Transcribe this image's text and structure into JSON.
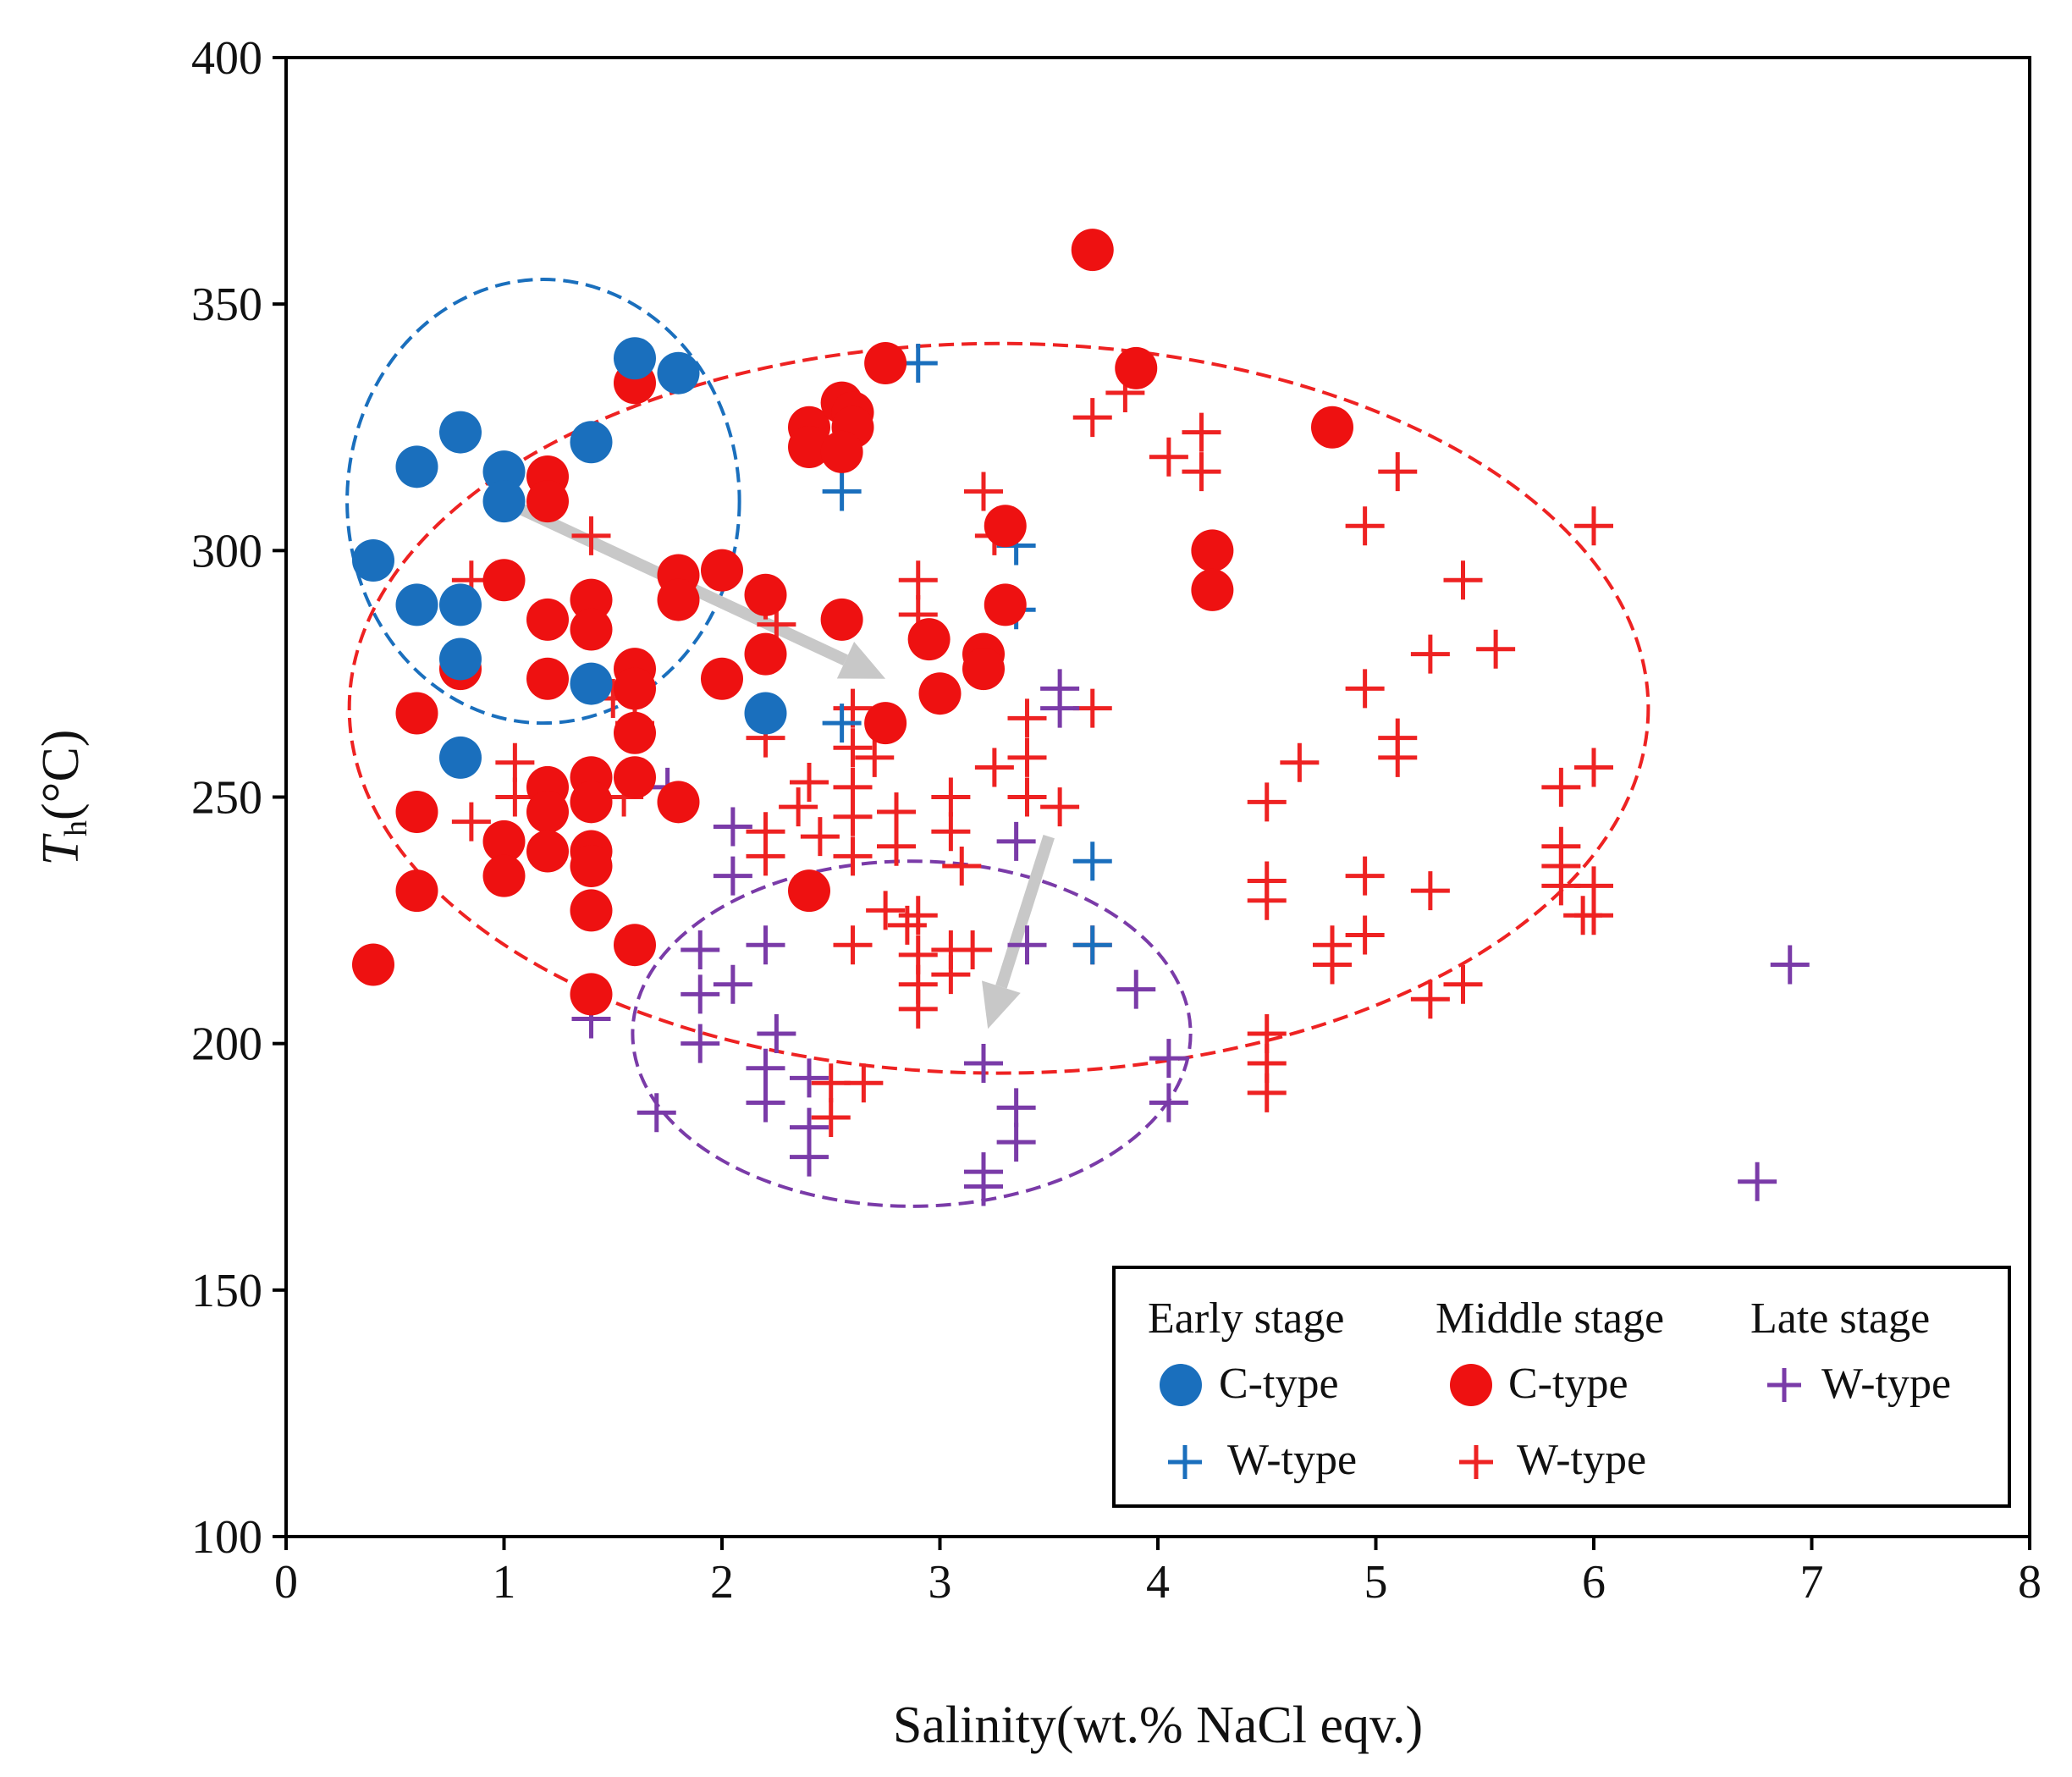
{
  "chart_data": {
    "type": "scatter",
    "title": "",
    "xlabel": "Salinity(wt.% NaCl eqv.)",
    "ylabel_main": "T",
    "ylabel_sub": "h",
    "ylabel_unit": "(°C)",
    "xlim": [
      0,
      8
    ],
    "ylim": [
      100,
      400
    ],
    "xticks": [
      "0",
      "1",
      "2",
      "3",
      "4",
      "5",
      "6",
      "7",
      "8"
    ],
    "yticks": [
      "100",
      "150",
      "200",
      "250",
      "300",
      "350",
      "400"
    ],
    "grid": false,
    "legend_position": "bottom-right",
    "legend": {
      "headers": [
        "Early stage",
        "Middle stage",
        "Late stage"
      ],
      "entries": [
        {
          "series": "early_c",
          "label": "C-type"
        },
        {
          "series": "early_w",
          "label": "W-type"
        },
        {
          "series": "middle_c",
          "label": "C-type"
        },
        {
          "series": "middle_w",
          "label": "W-type"
        },
        {
          "series": "late_w",
          "label": "W-type"
        }
      ]
    },
    "series": [
      {
        "id": "middle_w",
        "name": "Middle stage W-type",
        "marker": "plus",
        "color": "#ee2222",
        "points": [
          [
            0.85,
            294
          ],
          [
            0.85,
            245
          ],
          [
            1.05,
            257
          ],
          [
            1.05,
            250
          ],
          [
            1.4,
            303
          ],
          [
            1.5,
            270
          ],
          [
            1.55,
            250
          ],
          [
            1.6,
            276
          ],
          [
            1.6,
            265
          ],
          [
            2.2,
            290
          ],
          [
            2.25,
            285
          ],
          [
            2.2,
            262
          ],
          [
            2.2,
            243
          ],
          [
            2.2,
            238
          ],
          [
            2.35,
            248
          ],
          [
            2.4,
            253
          ],
          [
            2.45,
            242
          ],
          [
            2.5,
            192
          ],
          [
            2.5,
            185
          ],
          [
            2.6,
            268
          ],
          [
            2.6,
            260
          ],
          [
            2.6,
            252
          ],
          [
            2.6,
            246
          ],
          [
            2.6,
            238
          ],
          [
            2.6,
            220
          ],
          [
            2.65,
            192
          ],
          [
            2.7,
            258
          ],
          [
            2.8,
            247
          ],
          [
            2.8,
            240
          ],
          [
            2.75,
            227
          ],
          [
            2.9,
            294
          ],
          [
            2.9,
            287
          ],
          [
            2.85,
            224
          ],
          [
            2.9,
            226
          ],
          [
            2.9,
            218
          ],
          [
            2.9,
            212
          ],
          [
            2.9,
            207
          ],
          [
            3.05,
            250
          ],
          [
            3.05,
            243
          ],
          [
            3.1,
            236
          ],
          [
            3.05,
            219
          ],
          [
            3.05,
            214
          ],
          [
            3.15,
            219
          ],
          [
            3.2,
            312
          ],
          [
            3.25,
            303
          ],
          [
            3.25,
            256
          ],
          [
            3.4,
            266
          ],
          [
            3.4,
            258
          ],
          [
            3.4,
            250
          ],
          [
            3.55,
            248
          ],
          [
            3.7,
            268
          ],
          [
            3.7,
            327
          ],
          [
            3.7,
            220
          ],
          [
            3.85,
            332
          ],
          [
            4.05,
            319
          ],
          [
            4.2,
            324
          ],
          [
            4.2,
            316
          ],
          [
            4.5,
            249
          ],
          [
            4.5,
            233
          ],
          [
            4.5,
            229
          ],
          [
            4.5,
            202
          ],
          [
            4.5,
            196
          ],
          [
            4.5,
            190
          ],
          [
            4.65,
            257
          ],
          [
            4.8,
            220
          ],
          [
            4.8,
            216
          ],
          [
            4.95,
            305
          ],
          [
            4.95,
            272
          ],
          [
            4.95,
            234
          ],
          [
            4.95,
            222
          ],
          [
            5.1,
            316
          ],
          [
            5.1,
            262
          ],
          [
            5.1,
            258
          ],
          [
            5.25,
            279
          ],
          [
            5.25,
            231
          ],
          [
            5.25,
            209
          ],
          [
            5.4,
            294
          ],
          [
            5.4,
            212
          ],
          [
            5.55,
            280
          ],
          [
            5.85,
            252
          ],
          [
            5.85,
            240
          ],
          [
            5.85,
            236
          ],
          [
            5.85,
            232
          ],
          [
            5.95,
            226
          ],
          [
            6.0,
            305
          ],
          [
            6.0,
            256
          ],
          [
            6.0,
            232
          ],
          [
            6.0,
            226
          ]
        ]
      },
      {
        "id": "late_w",
        "name": "Late stage W-type",
        "marker": "plus",
        "color": "#7a3ba8",
        "points": [
          [
            1.4,
            205
          ],
          [
            1.75,
            252
          ],
          [
            1.7,
            186
          ],
          [
            1.9,
            219
          ],
          [
            1.9,
            210
          ],
          [
            1.9,
            200
          ],
          [
            2.05,
            244
          ],
          [
            2.05,
            234
          ],
          [
            2.05,
            212
          ],
          [
            2.2,
            220
          ],
          [
            2.25,
            202
          ],
          [
            2.2,
            195
          ],
          [
            2.2,
            188
          ],
          [
            2.4,
            193
          ],
          [
            2.4,
            183
          ],
          [
            2.4,
            177
          ],
          [
            3.2,
            196
          ],
          [
            3.2,
            174
          ],
          [
            3.2,
            171
          ],
          [
            3.35,
            187
          ],
          [
            3.35,
            180
          ],
          [
            3.35,
            241
          ],
          [
            3.4,
            220
          ],
          [
            3.55,
            272
          ],
          [
            3.55,
            268
          ],
          [
            3.9,
            211
          ],
          [
            4.05,
            197
          ],
          [
            4.05,
            188
          ],
          [
            6.75,
            172
          ],
          [
            6.9,
            216
          ]
        ]
      },
      {
        "id": "early_w",
        "name": "Early stage W-type",
        "marker": "plus",
        "color": "#1a6fbd",
        "points": [
          [
            2.9,
            338
          ],
          [
            2.55,
            312
          ],
          [
            3.35,
            301
          ],
          [
            3.35,
            288
          ],
          [
            2.55,
            265
          ],
          [
            3.7,
            237
          ],
          [
            3.7,
            220
          ]
        ]
      },
      {
        "id": "middle_c",
        "name": "Middle stage C-type",
        "marker": "circle",
        "color": "#ee1111",
        "points": [
          [
            0.4,
            216
          ],
          [
            0.6,
            231
          ],
          [
            0.6,
            247
          ],
          [
            0.6,
            267
          ],
          [
            0.8,
            276
          ],
          [
            1.0,
            294
          ],
          [
            1.0,
            241
          ],
          [
            1.0,
            234
          ],
          [
            1.2,
            315
          ],
          [
            1.2,
            310
          ],
          [
            1.2,
            286
          ],
          [
            1.2,
            274
          ],
          [
            1.2,
            252
          ],
          [
            1.2,
            247
          ],
          [
            1.2,
            239
          ],
          [
            1.4,
            290
          ],
          [
            1.4,
            284
          ],
          [
            1.4,
            254
          ],
          [
            1.4,
            249
          ],
          [
            1.4,
            239
          ],
          [
            1.4,
            236
          ],
          [
            1.4,
            227
          ],
          [
            1.4,
            210
          ],
          [
            1.6,
            334
          ],
          [
            1.6,
            276
          ],
          [
            1.6,
            272
          ],
          [
            1.6,
            263
          ],
          [
            1.6,
            254
          ],
          [
            1.6,
            220
          ],
          [
            1.8,
            295
          ],
          [
            1.8,
            290
          ],
          [
            1.8,
            249
          ],
          [
            2.0,
            296
          ],
          [
            2.0,
            274
          ],
          [
            2.2,
            291
          ],
          [
            2.2,
            279
          ],
          [
            2.4,
            231
          ],
          [
            2.4,
            325
          ],
          [
            2.4,
            321
          ],
          [
            2.55,
            330
          ],
          [
            2.6,
            328
          ],
          [
            2.6,
            325
          ],
          [
            2.55,
            320
          ],
          [
            2.55,
            286
          ],
          [
            2.75,
            338
          ],
          [
            2.75,
            265
          ],
          [
            2.95,
            282
          ],
          [
            3.0,
            271
          ],
          [
            3.2,
            279
          ],
          [
            3.2,
            276
          ],
          [
            3.3,
            289
          ],
          [
            3.3,
            305
          ],
          [
            3.7,
            361
          ],
          [
            3.9,
            337
          ],
          [
            4.25,
            300
          ],
          [
            4.25,
            292
          ],
          [
            4.8,
            325
          ]
        ]
      },
      {
        "id": "early_c",
        "name": "Early stage C-type",
        "marker": "circle",
        "color": "#1a6fbd",
        "points": [
          [
            0.4,
            298
          ],
          [
            0.6,
            317
          ],
          [
            0.6,
            289
          ],
          [
            0.8,
            324
          ],
          [
            0.8,
            289
          ],
          [
            0.8,
            278
          ],
          [
            0.8,
            258
          ],
          [
            1.0,
            316
          ],
          [
            1.0,
            310
          ],
          [
            1.4,
            322
          ],
          [
            1.4,
            273
          ],
          [
            1.6,
            339
          ],
          [
            1.8,
            336
          ],
          [
            2.2,
            267
          ]
        ]
      }
    ],
    "annotations": {
      "ellipses": [
        {
          "group": "early",
          "color": "#1a6fbd",
          "cx": 1.18,
          "cy": 310,
          "rx": 0.9,
          "ry": 45
        },
        {
          "group": "middle",
          "color": "#ee2222",
          "cx": 3.27,
          "cy": 268,
          "rx": 2.98,
          "ry": 74
        },
        {
          "group": "late",
          "color": "#7a3ba8",
          "cx": 2.87,
          "cy": 202,
          "rx": 1.28,
          "ry": 35
        }
      ],
      "arrows": [
        {
          "color": "#c8c8c8",
          "from": [
            1.05,
            309
          ],
          "to": [
            2.75,
            274
          ]
        },
        {
          "color": "#c8c8c8",
          "from": [
            3.5,
            242
          ],
          "to": [
            3.22,
            203
          ]
        }
      ]
    }
  }
}
